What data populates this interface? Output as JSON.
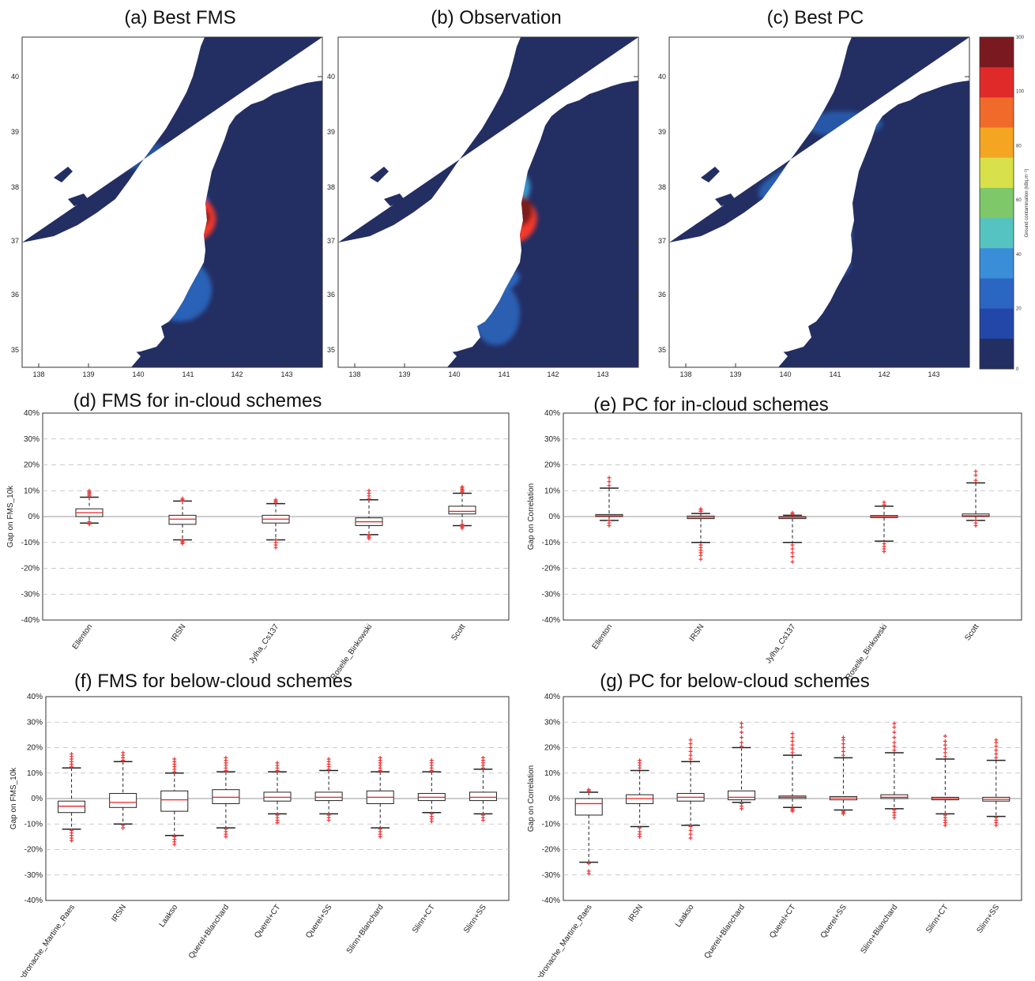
{
  "colors": {
    "sea": "#ffffff",
    "background": "#232e63",
    "plume_low": "#2b6bc6",
    "plume_mid": "#3fa4dc",
    "plume_high": "#f5372c",
    "plume_max": "#7b1a1e",
    "outlier": "#ee3333",
    "median": "#ee2222"
  },
  "maps": [
    {
      "title": "(a)  Best FMS",
      "yticks": [
        "40",
        "39",
        "38",
        "37",
        "36",
        "35"
      ],
      "xticks": [
        "138",
        "139",
        "140",
        "141",
        "142",
        "143"
      ]
    },
    {
      "title": "(b)  Observation",
      "yticks": [
        "40",
        "39",
        "38",
        "37",
        "36",
        "35"
      ],
      "xticks": [
        "138",
        "139",
        "140",
        "141",
        "142",
        "143"
      ]
    },
    {
      "title": "(c)  Best PC",
      "yticks": [
        "40",
        "39",
        "38",
        "37",
        "36",
        "35"
      ],
      "xticks": [
        "138",
        "139",
        "140",
        "141",
        "142",
        "143"
      ]
    }
  ],
  "colorbar": {
    "ticks": [
      "300",
      "100",
      "80",
      "60",
      "40",
      "20",
      "0"
    ],
    "label": "Ground contamination (kBq.m⁻²)",
    "colors": [
      "#7a1a20",
      "#e02a2a",
      "#f06a2a",
      "#f4a623",
      "#d8e04a",
      "#7fc86a",
      "#55c4c0",
      "#3a8ed8",
      "#2b66c2",
      "#2347a8",
      "#232e63"
    ]
  },
  "chart_data": [
    {
      "type": "box",
      "title": "(d)  FMS for in-cloud schemes",
      "ylabel": "Gap on FMS_10k",
      "ylim": [
        -40,
        40
      ],
      "yticks": [
        "40%",
        "30%",
        "20%",
        "10%",
        "0%",
        "-10%",
        "-20%",
        "-30%",
        "-40%"
      ],
      "categories": [
        "Ellenton",
        "IRSN",
        "Jylha_Cs137",
        "Roselle_Binkowski",
        "Scott"
      ],
      "boxes": [
        {
          "min": -2.5,
          "q1": 0,
          "median": 1.5,
          "q3": 3,
          "max": 7.5,
          "outliers": [
            8,
            8.5,
            9,
            9.5,
            10,
            -2,
            -2.5,
            -3
          ]
        },
        {
          "min": -9,
          "q1": -3,
          "median": -1,
          "q3": 0.5,
          "max": 6,
          "outliers": [
            6,
            6.5,
            7,
            -9,
            -9.5,
            -10,
            -10.5
          ]
        },
        {
          "min": -9,
          "q1": -2.5,
          "median": -1,
          "q3": 0.5,
          "max": 5,
          "outliers": [
            5.5,
            6,
            6.5,
            -9,
            -10,
            -11,
            -12
          ]
        },
        {
          "min": -7,
          "q1": -3.5,
          "median": -2,
          "q3": -0.5,
          "max": 6.5,
          "outliers": [
            7,
            8,
            9,
            10,
            -7,
            -7.5,
            -8,
            -8.5
          ]
        },
        {
          "min": -3.5,
          "q1": 1,
          "median": 2,
          "q3": 4,
          "max": 9,
          "outliers": [
            9.5,
            10,
            10.5,
            11,
            11.5,
            -3,
            -3.5,
            -4,
            -4.5
          ]
        }
      ]
    },
    {
      "type": "box",
      "title": "(e)  PC for in-cloud schemes",
      "ylabel": "Gap on Correlation",
      "ylim": [
        -40,
        40
      ],
      "yticks": [
        "40%",
        "30%",
        "20%",
        "10%",
        "0%",
        "-10%",
        "-20%",
        "-30%",
        "-40%"
      ],
      "categories": [
        "Ellenton",
        "IRSN",
        "Jylha_Cs137",
        "Roselle_Binkowski",
        "Scott"
      ],
      "boxes": [
        {
          "min": -1.5,
          "q1": 0,
          "median": 0.3,
          "q3": 0.8,
          "max": 11,
          "outliers": [
            12,
            13.5,
            15,
            -1.5,
            -2.5,
            -3.5
          ]
        },
        {
          "min": -10,
          "q1": -0.8,
          "median": -0.3,
          "q3": 0.2,
          "max": 1.2,
          "outliers": [
            2,
            2.5,
            3,
            -11,
            -12,
            -13,
            -14,
            -15,
            -16.5
          ]
        },
        {
          "min": -10,
          "q1": -0.8,
          "median": -0.3,
          "q3": 0,
          "max": 0.5,
          "outliers": [
            1,
            1.5,
            -11,
            -12.5,
            -14,
            -15.5,
            -17.5
          ]
        },
        {
          "min": -9.5,
          "q1": -0.4,
          "median": 0,
          "q3": 0.4,
          "max": 4,
          "outliers": [
            4.5,
            5.5,
            -10.5,
            -11.5,
            -12.5,
            -13.5
          ]
        },
        {
          "min": -1.5,
          "q1": 0,
          "median": 0.3,
          "q3": 1,
          "max": 13,
          "outliers": [
            14,
            16,
            17.5,
            -1.5,
            -2.5,
            -3.5
          ]
        }
      ]
    },
    {
      "type": "box",
      "title": "(f)  FMS for below-cloud schemes",
      "ylabel": "Gap on FMS_10k",
      "ylim": [
        -40,
        40
      ],
      "yticks": [
        "40%",
        "30%",
        "20%",
        "10%",
        "0%",
        "-10%",
        "-20%",
        "-30%",
        "-40%"
      ],
      "categories": [
        "Andronache_Martine_Raes",
        "IRSN",
        "Laakso",
        "Querel+Blanchard",
        "Querel+CT",
        "Querel+SS",
        "Slinn+Blanchard",
        "Slinn+CT",
        "Slinn+SS"
      ],
      "boxes": [
        {
          "min": -12,
          "q1": -5.5,
          "median": -3,
          "q3": -1,
          "max": 12,
          "outliers": [
            12.5,
            13.5,
            14.5,
            15.5,
            16.5,
            17.5,
            -12.5,
            -13.5,
            -14.5,
            -15.5,
            -16.5
          ]
        },
        {
          "min": -10,
          "q1": -3.5,
          "median": -1.5,
          "q3": 2,
          "max": 14.5,
          "outliers": [
            15,
            16,
            17,
            18,
            -10.5,
            -11.5
          ]
        },
        {
          "min": -14.5,
          "q1": -5,
          "median": -0.5,
          "q3": 3,
          "max": 10,
          "outliers": [
            10.5,
            11.5,
            12.5,
            13.5,
            14.5,
            15.5,
            -15,
            -16,
            -17,
            -18
          ]
        },
        {
          "min": -11.5,
          "q1": -2,
          "median": 0.5,
          "q3": 3.5,
          "max": 10.5,
          "outliers": [
            11,
            12,
            13,
            14,
            15,
            16,
            -12,
            -13,
            -14,
            -15
          ]
        },
        {
          "min": -6,
          "q1": -1,
          "median": 0.5,
          "q3": 2.5,
          "max": 10.5,
          "outliers": [
            11,
            12,
            13,
            14,
            -6.5,
            -7.5,
            -8.5,
            -9.5
          ]
        },
        {
          "min": -6,
          "q1": -0.8,
          "median": 0.5,
          "q3": 2.5,
          "max": 11,
          "outliers": [
            11.5,
            12.5,
            13.5,
            14.5,
            15.5,
            -6.5,
            -7.5,
            -8.5
          ]
        },
        {
          "min": -11.5,
          "q1": -2,
          "median": 0.5,
          "q3": 3,
          "max": 10.5,
          "outliers": [
            11,
            12,
            13,
            14,
            15,
            16,
            -12,
            -13,
            -14,
            -15
          ]
        },
        {
          "min": -5.5,
          "q1": -0.8,
          "median": 0.5,
          "q3": 2,
          "max": 10.5,
          "outliers": [
            11,
            12,
            13,
            14,
            15,
            -6,
            -7,
            -8,
            -9
          ]
        },
        {
          "min": -6,
          "q1": -0.8,
          "median": 0.5,
          "q3": 2.5,
          "max": 11.5,
          "outliers": [
            12,
            13,
            14,
            15,
            16,
            -6.5,
            -7.5,
            -8.5
          ]
        }
      ]
    },
    {
      "type": "box",
      "title": "(g)  PC for below-cloud schemes",
      "ylabel": "Gap on Correlation",
      "ylim": [
        -40,
        40
      ],
      "yticks": [
        "40%",
        "30%",
        "20%",
        "10%",
        "0%",
        "-10%",
        "-20%",
        "-30%",
        "-40%"
      ],
      "categories": [
        "Andronache_Martine_Raes",
        "IRSN",
        "Laakso",
        "Querel+Blanchard",
        "Querel+CT",
        "Querel+SS",
        "Slinn+Blanchard",
        "Slinn+CT",
        "Slinn+SS"
      ],
      "boxes": [
        {
          "min": -25,
          "q1": -6.5,
          "median": -2,
          "q3": 0,
          "max": 2.5,
          "outliers": [
            3,
            3.5,
            -25.5,
            -28.5,
            -29.5
          ]
        },
        {
          "min": -11,
          "q1": -2,
          "median": 0,
          "q3": 1.5,
          "max": 11,
          "outliers": [
            12,
            13,
            14,
            15,
            -11.5,
            -13,
            -14,
            -15
          ]
        },
        {
          "min": -10.5,
          "q1": -1,
          "median": 0.5,
          "q3": 2,
          "max": 14.5,
          "outliers": [
            15.5,
            17,
            18.5,
            20,
            21.5,
            23,
            -11,
            -12.5,
            -14,
            -15.5
          ]
        },
        {
          "min": -1.5,
          "q1": -0.5,
          "median": 0.5,
          "q3": 3,
          "max": 20,
          "outliers": [
            20.5,
            22,
            24,
            26,
            28,
            29.5,
            -2,
            -3,
            -4
          ]
        },
        {
          "min": -3.5,
          "q1": 0,
          "median": 0.5,
          "q3": 1,
          "max": 17,
          "outliers": [
            18,
            19.5,
            21,
            22.5,
            24,
            25.5,
            -4,
            -4.5,
            -5
          ]
        },
        {
          "min": -4.5,
          "q1": -0.5,
          "median": 0.2,
          "q3": 0.8,
          "max": 16,
          "outliers": [
            17,
            18.5,
            20,
            21.5,
            23,
            24,
            -5,
            -5.5,
            -6
          ]
        },
        {
          "min": -4,
          "q1": 0,
          "median": 0.5,
          "q3": 1.5,
          "max": 18,
          "outliers": [
            19,
            20.5,
            22,
            24,
            26,
            28,
            29.5,
            -4.5,
            -5.5,
            -6.5,
            -7.5
          ]
        },
        {
          "min": -6,
          "q1": -0.5,
          "median": 0,
          "q3": 0.5,
          "max": 15.5,
          "outliers": [
            16.5,
            18,
            19.5,
            21,
            22.5,
            24.5,
            -6.5,
            -7.5,
            -8.5,
            -9.5,
            -10.5
          ]
        },
        {
          "min": -7,
          "q1": -1,
          "median": -0.3,
          "q3": 0.5,
          "max": 15,
          "outliers": [
            16,
            17.5,
            19,
            20.5,
            22,
            23,
            -7.5,
            -8.5,
            -9.5,
            -10.5
          ]
        }
      ]
    }
  ]
}
